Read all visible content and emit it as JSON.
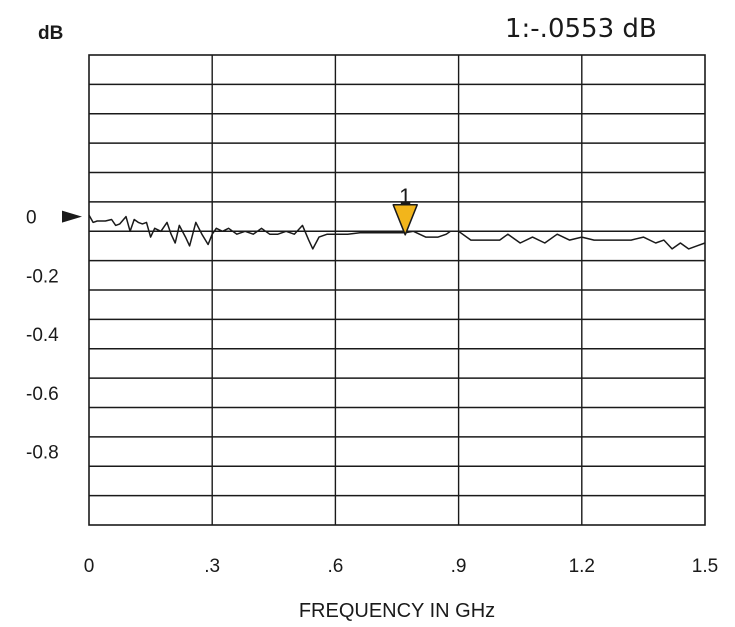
{
  "chart_data": {
    "type": "line",
    "ylabel": "dB",
    "xlabel": "FREQUENCY IN GHz",
    "readout": "1:-.0553 dB",
    "xlim": [
      0,
      1.5
    ],
    "ylim": [
      -1.05,
      0.55
    ],
    "grid": true,
    "x_ticks": [
      {
        "value": 0,
        "label": "0"
      },
      {
        "value": 0.3,
        "label": ".3"
      },
      {
        "value": 0.6,
        "label": ".6"
      },
      {
        "value": 0.9,
        "label": ".9"
      },
      {
        "value": 1.2,
        "label": "1.2"
      },
      {
        "value": 1.5,
        "label": "1.5"
      }
    ],
    "y_ticks": [
      {
        "value": 0,
        "label": "0"
      },
      {
        "value": -0.2,
        "label": "-0.2"
      },
      {
        "value": -0.4,
        "label": "-0.4"
      },
      {
        "value": -0.6,
        "label": "-0.6"
      },
      {
        "value": -0.8,
        "label": "-0.8"
      }
    ],
    "reference_level": 0,
    "marker": {
      "label": "1",
      "x": 0.77,
      "y": -0.0553,
      "color": "#f2b51b"
    },
    "trace_color": "#1a1a1a",
    "series": [
      {
        "x": [
          0,
          0.01,
          0.02,
          0.04,
          0.055,
          0.065,
          0.075,
          0.09,
          0.1,
          0.11,
          0.12,
          0.13,
          0.14,
          0.15,
          0.16,
          0.175,
          0.19,
          0.2,
          0.21,
          0.22,
          0.235,
          0.245,
          0.26,
          0.275,
          0.29,
          0.3,
          0.31,
          0.325,
          0.34,
          0.36,
          0.38,
          0.4,
          0.42,
          0.44,
          0.46,
          0.48,
          0.5,
          0.52,
          0.535,
          0.545,
          0.56,
          0.58,
          0.6,
          0.63,
          0.66,
          0.7,
          0.74,
          0.77,
          0.79,
          0.82,
          0.85,
          0.87,
          0.88,
          0.9,
          0.93,
          0.96,
          1.0,
          1.02,
          1.05,
          1.08,
          1.11,
          1.14,
          1.17,
          1.2,
          1.23,
          1.26,
          1.29,
          1.32,
          1.35,
          1.38,
          1.4,
          1.42,
          1.44,
          1.46,
          1.48,
          1.5
        ],
        "y": [
          0.005,
          -0.02,
          -0.015,
          -0.015,
          -0.01,
          -0.03,
          -0.025,
          0.0,
          -0.05,
          -0.01,
          -0.02,
          -0.025,
          -0.02,
          -0.07,
          -0.04,
          -0.05,
          -0.02,
          -0.06,
          -0.09,
          -0.03,
          -0.07,
          -0.1,
          -0.02,
          -0.06,
          -0.095,
          -0.06,
          -0.04,
          -0.05,
          -0.04,
          -0.06,
          -0.05,
          -0.06,
          -0.04,
          -0.06,
          -0.06,
          -0.05,
          -0.06,
          -0.03,
          -0.08,
          -0.11,
          -0.07,
          -0.06,
          -0.06,
          -0.06,
          -0.055,
          -0.055,
          -0.055,
          -0.055,
          -0.05,
          -0.07,
          -0.07,
          -0.06,
          -0.05,
          -0.05,
          -0.08,
          -0.08,
          -0.08,
          -0.06,
          -0.09,
          -0.07,
          -0.09,
          -0.06,
          -0.08,
          -0.07,
          -0.08,
          -0.08,
          -0.08,
          -0.08,
          -0.07,
          -0.09,
          -0.08,
          -0.11,
          -0.09,
          -0.11,
          -0.1,
          -0.09
        ]
      }
    ]
  }
}
